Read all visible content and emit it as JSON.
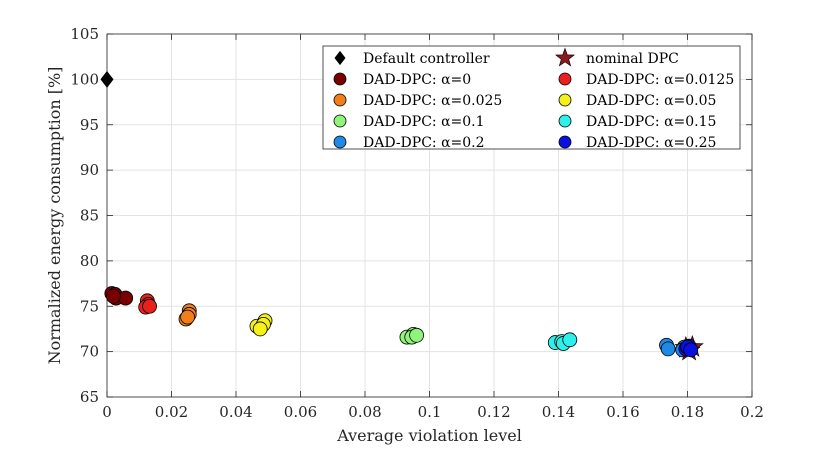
{
  "chart_data": {
    "type": "scatter",
    "title": "",
    "xlabel": "Average violation level",
    "ylabel": "Normalized energy consumption [%]",
    "xlim": [
      0,
      0.2
    ],
    "ylim": [
      65,
      105
    ],
    "xticks": [
      0,
      0.02,
      0.04,
      0.06,
      0.08,
      0.1,
      0.12,
      0.14,
      0.16,
      0.18,
      0.2
    ],
    "xtick_labels": [
      "0",
      "0.02",
      "0.04",
      "0.06",
      "0.08",
      "0.1",
      "0.12",
      "0.14",
      "0.16",
      "0.18",
      "0.2"
    ],
    "yticks": [
      65,
      70,
      75,
      80,
      85,
      90,
      95,
      100,
      105
    ],
    "ytick_labels": [
      "65",
      "70",
      "75",
      "80",
      "85",
      "90",
      "95",
      "100",
      "105"
    ],
    "grid": true,
    "legend_position": "top-right",
    "series": [
      {
        "name": "Default controller",
        "legend_label": "Default controller",
        "marker": "diamond",
        "color": "#000000",
        "points": [
          [
            0.0,
            100.0
          ]
        ]
      },
      {
        "name": "nominal DPC",
        "legend_label": "nominal DPC",
        "marker": "star",
        "color": "#8b1a1a",
        "points": [
          [
            0.1795,
            70.4
          ],
          [
            0.1815,
            70.5
          ],
          [
            0.1805,
            70.1
          ]
        ]
      },
      {
        "name": "DAD-DPC: α=0",
        "legend_label": "DAD-DPC: α=0",
        "marker": "circle",
        "color": "#7a0000",
        "points": [
          [
            0.0015,
            76.4
          ],
          [
            0.0025,
            76.3
          ],
          [
            0.0028,
            75.9
          ],
          [
            0.0058,
            75.9
          ],
          [
            0.002,
            76.1
          ]
        ]
      },
      {
        "name": "DAD-DPC: α=0.0125",
        "legend_label": "DAD-DPC: α=0.0125",
        "marker": "circle",
        "color": "#e8211f",
        "points": [
          [
            0.0125,
            75.6
          ],
          [
            0.0128,
            75.2
          ],
          [
            0.012,
            74.9
          ],
          [
            0.0132,
            75.0
          ]
        ]
      },
      {
        "name": "DAD-DPC: α=0.025",
        "legend_label": "DAD-DPC: α=0.025",
        "marker": "circle",
        "color": "#f07f1a",
        "points": [
          [
            0.0255,
            74.5
          ],
          [
            0.0255,
            74.1
          ],
          [
            0.0245,
            73.6
          ],
          [
            0.025,
            73.8
          ]
        ]
      },
      {
        "name": "DAD-DPC: α=0.05",
        "legend_label": "DAD-DPC: α=0.05",
        "marker": "circle",
        "color": "#f5f01a",
        "points": [
          [
            0.0465,
            72.8
          ],
          [
            0.049,
            73.4
          ],
          [
            0.0485,
            73.0
          ],
          [
            0.0475,
            72.5
          ]
        ]
      },
      {
        "name": "DAD-DPC: α=0.1",
        "legend_label": "DAD-DPC: α=0.1",
        "marker": "circle",
        "color": "#8ef57a",
        "points": [
          [
            0.093,
            71.6
          ],
          [
            0.095,
            71.9
          ],
          [
            0.0945,
            71.6
          ],
          [
            0.096,
            71.8
          ]
        ]
      },
      {
        "name": "DAD-DPC: α=0.15",
        "legend_label": "DAD-DPC: α=0.15",
        "marker": "circle",
        "color": "#2ef0ea",
        "points": [
          [
            0.139,
            71.0
          ],
          [
            0.141,
            71.1
          ],
          [
            0.1415,
            70.9
          ],
          [
            0.1435,
            71.3
          ]
        ]
      },
      {
        "name": "DAD-DPC: α=0.2",
        "legend_label": "DAD-DPC: α=0.2",
        "marker": "circle",
        "color": "#1e8ae6",
        "points": [
          [
            0.1735,
            70.7
          ],
          [
            0.174,
            70.3
          ],
          [
            0.179,
            70.5
          ],
          [
            0.1785,
            70.2
          ]
        ]
      },
      {
        "name": "DAD-DPC: α=0.25",
        "legend_label": "DAD-DPC: α=0.25",
        "marker": "circle",
        "color": "#0a10e0",
        "points": [
          [
            0.1795,
            70.3
          ],
          [
            0.1805,
            70.6
          ],
          [
            0.18,
            70.5
          ],
          [
            0.181,
            70.2
          ]
        ]
      }
    ],
    "legend_left": [
      "Default controller",
      "DAD-DPC: α=0",
      "DAD-DPC: α=0.025",
      "DAD-DPC: α=0.1",
      "DAD-DPC: α=0.2"
    ],
    "legend_right": [
      "nominal DPC",
      "DAD-DPC: α=0.0125",
      "DAD-DPC: α=0.05",
      "DAD-DPC: α=0.15",
      "DAD-DPC: α=0.25"
    ]
  }
}
